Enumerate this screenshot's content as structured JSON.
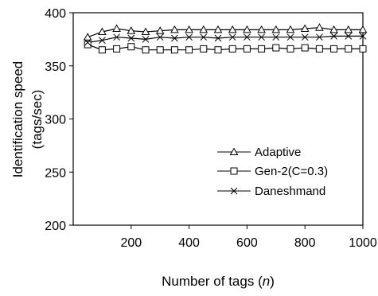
{
  "chart_data": {
    "type": "line",
    "title": "",
    "xlabel": "Number of tags (",
    "xlabel_var": "n",
    "xlabel_end": ")",
    "ylabel_line1": "Identification speed",
    "ylabel_line2": "(tags/sec)",
    "xlim": [
      0,
      1000
    ],
    "ylim": [
      200,
      400
    ],
    "x_ticks": [
      200,
      400,
      600,
      800,
      1000
    ],
    "x_tick_labels": [
      "200",
      "400",
      "600",
      "800",
      "1000"
    ],
    "y_ticks": [
      200,
      250,
      300,
      350,
      400
    ],
    "y_tick_labels": [
      "200",
      "250",
      "300",
      "350",
      "400"
    ],
    "grid": false,
    "legend_position": "lower-right",
    "x": [
      50,
      100,
      150,
      200,
      250,
      300,
      350,
      400,
      450,
      500,
      550,
      600,
      650,
      700,
      750,
      800,
      850,
      900,
      950,
      1000
    ],
    "series": [
      {
        "name": "Adaptive",
        "marker": "triangle",
        "values": [
          377,
          382,
          385,
          383,
          382,
          383,
          384,
          384,
          384,
          384,
          384,
          384,
          384,
          384,
          384,
          385,
          386,
          384,
          384,
          384
        ]
      },
      {
        "name": "Gen-2(C=0.3)",
        "marker": "square",
        "values": [
          370,
          365,
          366,
          368,
          365,
          365,
          365,
          365,
          366,
          365,
          366,
          366,
          366,
          367,
          366,
          367,
          366,
          366,
          366,
          366
        ]
      },
      {
        "name": "Daneshmand",
        "marker": "x",
        "values": [
          372,
          374,
          377,
          376,
          375,
          377,
          376,
          377,
          377,
          376,
          377,
          377,
          377,
          377,
          377,
          377,
          377,
          378,
          378,
          378
        ]
      }
    ]
  }
}
